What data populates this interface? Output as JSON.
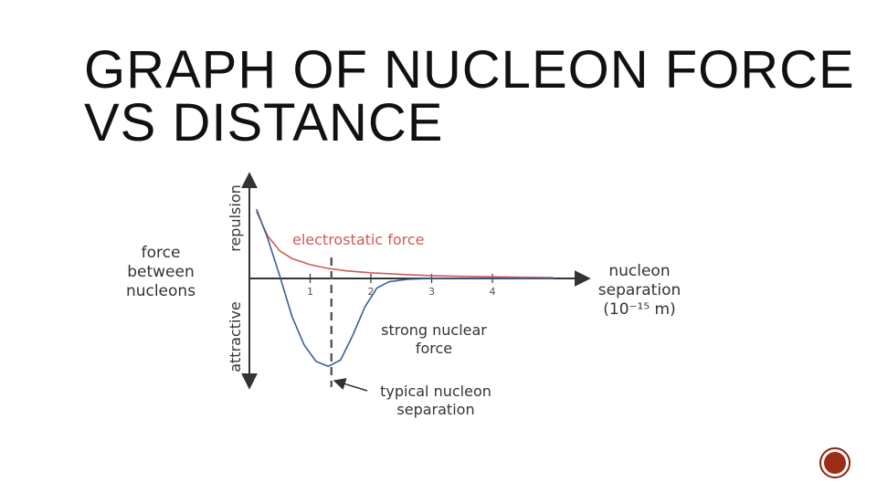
{
  "title": {
    "line1": "GRAPH OF NUCLEON FORCE",
    "line2": "VS DISTANCE"
  },
  "chart_data": {
    "type": "line",
    "y_axis": {
      "label_lines": [
        "force",
        "between",
        "nucleons"
      ],
      "positive_label": "repulsion",
      "negative_label": "attractive"
    },
    "x_axis": {
      "label_lines": [
        "nucleon",
        "separation",
        "(10⁻¹⁵ m)"
      ],
      "ticks": [
        "1",
        "2",
        "3",
        "4"
      ],
      "tick_values": [
        1,
        2,
        3,
        4
      ],
      "xlim": [
        0,
        5.2
      ]
    },
    "series": [
      {
        "name": "electrostatic force",
        "color": "#d05a5a",
        "x": [
          0.12,
          0.3,
          0.5,
          0.7,
          1.0,
          1.3,
          1.6,
          2.0,
          2.5,
          3.0,
          3.5,
          4.0,
          4.5,
          5.0
        ],
        "y": [
          1.4,
          0.9,
          0.58,
          0.42,
          0.29,
          0.21,
          0.16,
          0.12,
          0.085,
          0.06,
          0.045,
          0.035,
          0.025,
          0.02
        ]
      },
      {
        "name": "strong nuclear force",
        "label_lines": [
          "strong nuclear",
          "force"
        ],
        "color": "#3c5f95",
        "x": [
          0.12,
          0.3,
          0.5,
          0.7,
          0.9,
          1.1,
          1.3,
          1.5,
          1.7,
          1.9,
          2.1,
          2.3,
          2.6,
          3.0,
          3.5,
          4.0,
          5.0
        ],
        "y": [
          1.45,
          0.85,
          0.05,
          -0.8,
          -1.4,
          -1.75,
          -1.85,
          -1.72,
          -1.2,
          -0.6,
          -0.2,
          -0.07,
          -0.02,
          0,
          0,
          0,
          0
        ]
      }
    ],
    "annotations": [
      {
        "id": "typical-separation",
        "label_lines": [
          "typical nucleon",
          "separation"
        ],
        "x": 1.35
      }
    ]
  }
}
